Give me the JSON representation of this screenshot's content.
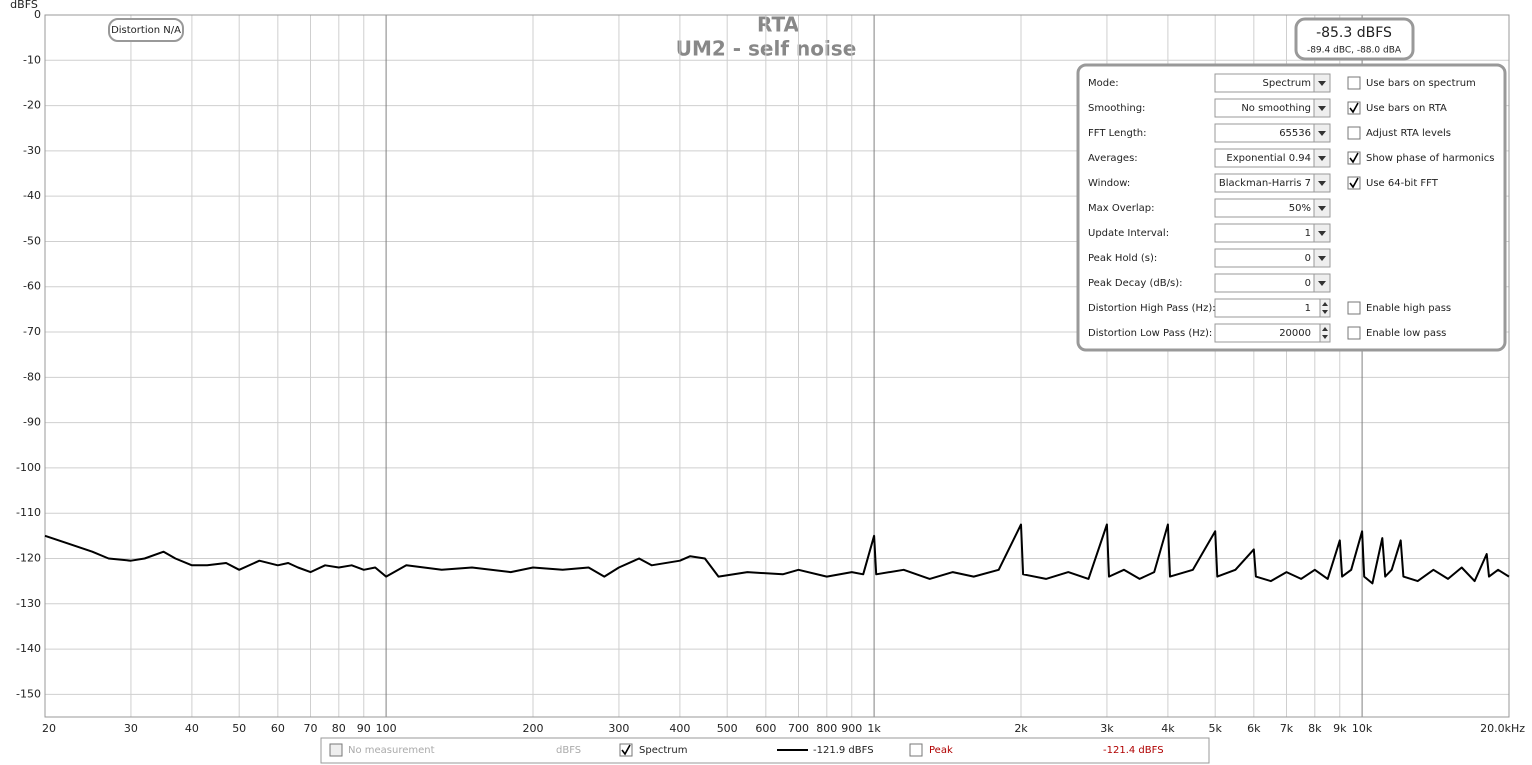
{
  "chart_data": {
    "type": "line",
    "title": "RTA",
    "subtitle": "UM2 - self noise",
    "y_label": "dBFS",
    "x": [
      20,
      22,
      25,
      27,
      30,
      32,
      35,
      37,
      40,
      43,
      47,
      50,
      55,
      60,
      63,
      66,
      70,
      75,
      80,
      85,
      90,
      95,
      100,
      110,
      130,
      150,
      180,
      200,
      230,
      260,
      280,
      300,
      330,
      350,
      400,
      420,
      450,
      480,
      550,
      650,
      700,
      800,
      900,
      950,
      1000,
      1010,
      1150,
      1300,
      1450,
      1600,
      1800,
      2000,
      2020,
      2250,
      2500,
      2750,
      3000,
      3030,
      3250,
      3500,
      3750,
      4000,
      4040,
      4500,
      5000,
      5050,
      5500,
      6000,
      6060,
      6500,
      7000,
      7500,
      8000,
      8500,
      9000,
      9100,
      9500,
      10000,
      10100,
      10500,
      11000,
      11150,
      11500,
      12000,
      12150,
      13000,
      14000,
      15000,
      16000,
      17000,
      18000,
      18200,
      19000,
      20000
    ],
    "series": [
      {
        "name": "Spectrum",
        "color": "#000000",
        "values": [
          -115,
          -116.5,
          -118.5,
          -120,
          -120.5,
          -120,
          -118.5,
          -120,
          -121.5,
          -121.5,
          -121,
          -122.5,
          -120.5,
          -121.5,
          -121,
          -122,
          -123,
          -121.5,
          -122,
          -121.5,
          -122.5,
          -122,
          -124,
          -121.5,
          -122.5,
          -122,
          -123,
          -122,
          -122.5,
          -122,
          -124,
          -122,
          -120,
          -121.5,
          -120.5,
          -119.5,
          -120,
          -124,
          -123,
          -123.5,
          -122.5,
          -124,
          -123,
          -123.5,
          -115,
          -123.5,
          -122.5,
          -124.5,
          -123,
          -124,
          -122.5,
          -112.5,
          -123.5,
          -124.5,
          -123,
          -124.5,
          -112.5,
          -124,
          -122.5,
          -124.5,
          -123,
          -112.5,
          -124,
          -122.5,
          -114,
          -124,
          -122.5,
          -118,
          -124,
          -125,
          -123,
          -124.5,
          -122.5,
          -124.5,
          -116,
          -124,
          -122.5,
          -114,
          -124,
          -125.5,
          -115.5,
          -124,
          -122.5,
          -116,
          -124,
          -125,
          -122.5,
          -124.5,
          -122,
          -125,
          -119,
          -124,
          -122.5,
          -124
        ]
      }
    ],
    "xlim": [
      20,
      20000
    ],
    "ylim": [
      -155,
      0
    ],
    "log_x": true,
    "grid": true,
    "xticks": [
      20,
      30,
      40,
      50,
      60,
      70,
      80,
      90,
      100,
      200,
      300,
      400,
      500,
      600,
      700,
      800,
      900,
      {
        "value": 1000,
        "label": "1k"
      },
      {
        "value": 2000,
        "label": "2k"
      },
      {
        "value": 3000,
        "label": "3k"
      },
      {
        "value": 4000,
        "label": "4k"
      },
      {
        "value": 5000,
        "label": "5k"
      },
      {
        "value": 6000,
        "label": "6k"
      },
      {
        "value": 7000,
        "label": "7k"
      },
      {
        "value": 8000,
        "label": "8k"
      },
      {
        "value": 9000,
        "label": "9k"
      },
      {
        "value": 10000,
        "label": "10k"
      },
      {
        "value": 20000,
        "label": "20.0kHz"
      }
    ],
    "yticks": [
      0,
      -10,
      -20,
      -30,
      -40,
      -50,
      -60,
      -70,
      -80,
      -90,
      -100,
      -110,
      -120,
      -130,
      -140,
      -150
    ]
  },
  "distortion": "Distortion N/A",
  "readout": {
    "main": "-85.3 dBFS",
    "sub": "-89.4 dBC, -88.0 dBA"
  },
  "panel": {
    "rows": [
      {
        "label": "Mode:",
        "value": "Spectrum",
        "checkbox": {
          "label": "Use bars on spectrum",
          "checked": false
        }
      },
      {
        "label": "Smoothing:",
        "value": "No  smoothing",
        "checkbox": {
          "label": "Use bars on RTA",
          "checked": true
        }
      },
      {
        "label": "FFT Length:",
        "value": "65536",
        "checkbox": {
          "label": "Adjust RTA levels",
          "checked": false
        }
      },
      {
        "label": "Averages:",
        "value": "Exponential 0.94",
        "checkbox": {
          "label": "Show phase of harmonics",
          "checked": true
        }
      },
      {
        "label": "Window:",
        "value": "Blackman-Harris 7",
        "checkbox": {
          "label": "Use 64-bit FFT",
          "checked": true
        }
      },
      {
        "label": "Max Overlap:",
        "value": "50%"
      },
      {
        "label": "Update Interval:",
        "value": "1"
      },
      {
        "label": "Peak Hold (s):",
        "value": "0"
      },
      {
        "label": "Peak Decay (dB/s):",
        "value": "0"
      },
      {
        "label": "Distortion High Pass (Hz):",
        "value": "1",
        "spinner": true,
        "checkbox": {
          "label": "Enable high pass",
          "checked": false
        }
      },
      {
        "label": "Distortion Low Pass (Hz):",
        "value": "20000",
        "spinner": true,
        "checkbox": {
          "label": "Enable low pass",
          "checked": false
        }
      }
    ]
  },
  "legend": {
    "items": [
      {
        "label": "No measurement",
        "unit": "dBFS",
        "checked": false,
        "disabled": true
      },
      {
        "label": "Spectrum",
        "reading": "-121.9 dBFS",
        "checked": true
      },
      {
        "label": "Peak",
        "reading": "-121.4 dBFS",
        "checked": false,
        "color": "#b00000"
      }
    ]
  }
}
